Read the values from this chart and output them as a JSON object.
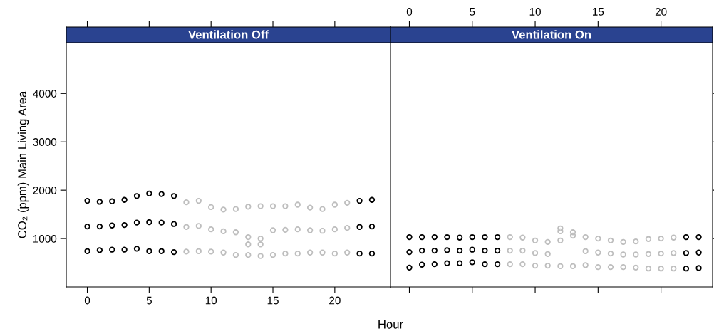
{
  "chart_data": [
    {
      "type": "scatter",
      "title": "Ventilation Off",
      "xlabel": "Hour",
      "ylabel": "CO₂ (ppm) Main Living Area",
      "marker": "circle",
      "grid": false,
      "legend": false,
      "xlim": [
        -1.7,
        24.5
      ],
      "xticks": [
        0,
        5,
        10,
        15,
        20
      ],
      "ylim": [
        0,
        5050
      ],
      "yticks": [
        1000,
        2000,
        3000,
        4000
      ],
      "series": [
        {
          "color": "#000000",
          "x": [
            0,
            0,
            0,
            1,
            1,
            1,
            2,
            2,
            2,
            3,
            3,
            3,
            4,
            4,
            4,
            5,
            5,
            5,
            6,
            6,
            6,
            7,
            7,
            7,
            22,
            22,
            22,
            23,
            23,
            23
          ],
          "values": [
            1780,
            1250,
            740,
            1760,
            1250,
            760,
            1770,
            1270,
            770,
            1800,
            1280,
            770,
            1880,
            1330,
            790,
            1930,
            1340,
            740,
            1920,
            1330,
            740,
            1880,
            1300,
            720,
            1780,
            1240,
            690,
            1800,
            1250,
            690
          ]
        },
        {
          "color": "#bebebe",
          "x": [
            8,
            8,
            8,
            9,
            9,
            9,
            10,
            10,
            10,
            11,
            11,
            11,
            12,
            12,
            12,
            13,
            13,
            13,
            13,
            14,
            14,
            14,
            14,
            15,
            15,
            15,
            16,
            16,
            16,
            17,
            17,
            17,
            18,
            18,
            18,
            19,
            19,
            19,
            20,
            20,
            20,
            21,
            21,
            21
          ],
          "values": [
            1750,
            1240,
            730,
            1780,
            1260,
            740,
            1650,
            1190,
            730,
            1600,
            1150,
            710,
            1610,
            1130,
            660,
            1660,
            1030,
            880,
            660,
            1670,
            1000,
            880,
            640,
            1670,
            1170,
            660,
            1670,
            1180,
            690,
            1700,
            1190,
            690,
            1640,
            1170,
            710,
            1610,
            1160,
            710,
            1700,
            1190,
            690,
            1740,
            1220,
            710
          ]
        }
      ]
    },
    {
      "type": "scatter",
      "title": "Ventilation On",
      "marker": "circle",
      "grid": false,
      "legend": false,
      "xlim": [
        -1.5,
        24.1
      ],
      "xticks": [
        0,
        5,
        10,
        15,
        20
      ],
      "ylim": [
        0,
        5050
      ],
      "yticks": [
        1000,
        2000,
        3000,
        4000
      ],
      "tick_labels": "x",
      "series": [
        {
          "color": "#000000",
          "x": [
            0,
            0,
            0,
            1,
            1,
            1,
            2,
            2,
            2,
            3,
            3,
            3,
            4,
            4,
            4,
            5,
            5,
            5,
            6,
            6,
            6,
            7,
            7,
            7,
            22,
            22,
            22,
            23,
            23,
            23
          ],
          "values": [
            1030,
            720,
            400,
            1030,
            750,
            460,
            1030,
            750,
            470,
            1030,
            760,
            490,
            1020,
            750,
            490,
            1030,
            770,
            510,
            1030,
            750,
            470,
            1030,
            750,
            470,
            1030,
            700,
            380,
            1030,
            710,
            390
          ]
        },
        {
          "color": "#bebebe",
          "x": [
            8,
            8,
            8,
            9,
            9,
            9,
            10,
            10,
            10,
            11,
            11,
            11,
            12,
            12,
            12,
            12,
            13,
            13,
            13,
            14,
            14,
            14,
            15,
            15,
            15,
            16,
            16,
            16,
            17,
            17,
            17,
            18,
            18,
            18,
            19,
            19,
            19,
            20,
            20,
            20,
            21,
            21,
            21
          ],
          "values": [
            1030,
            750,
            470,
            1020,
            750,
            470,
            960,
            700,
            440,
            930,
            680,
            440,
            1210,
            1150,
            960,
            430,
            1130,
            1060,
            430,
            1030,
            740,
            450,
            1000,
            710,
            410,
            960,
            690,
            410,
            930,
            670,
            410,
            940,
            670,
            400,
            990,
            680,
            380,
            1000,
            690,
            380,
            1020,
            700,
            380
          ]
        }
      ]
    }
  ]
}
